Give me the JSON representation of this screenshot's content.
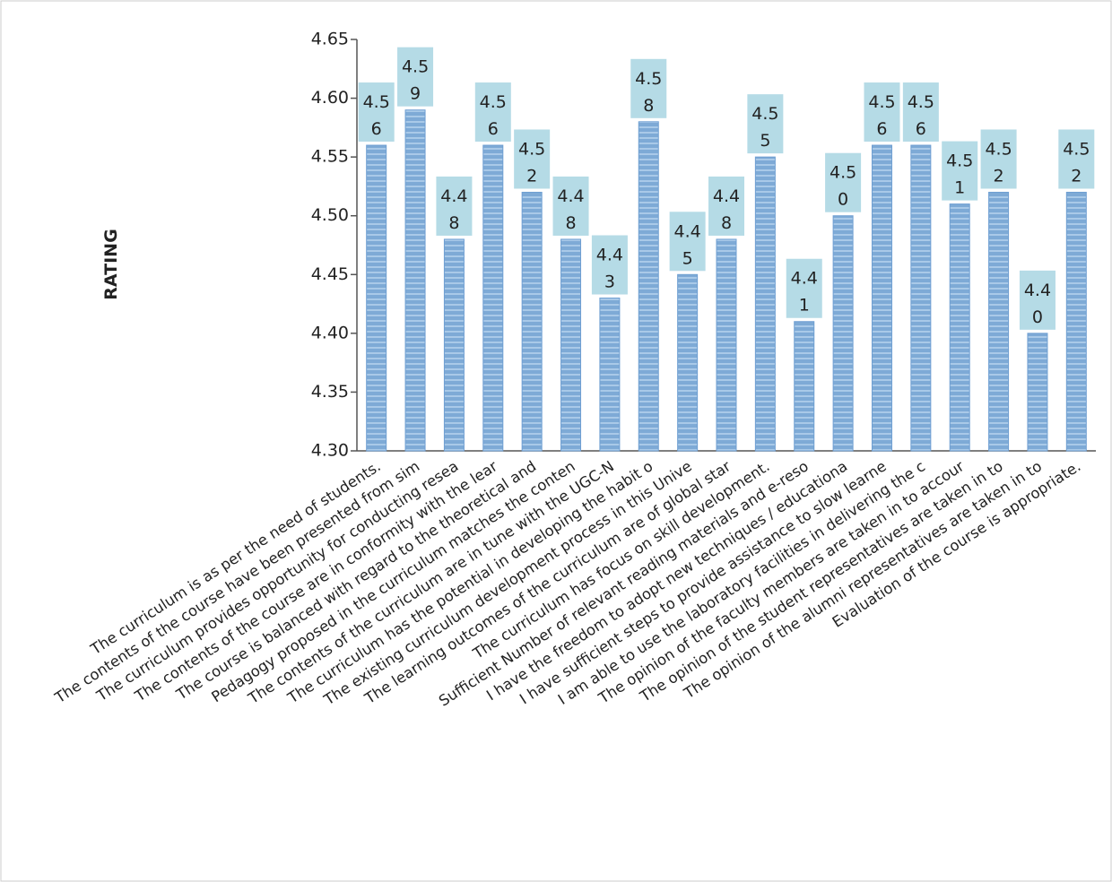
{
  "chart_data": {
    "type": "bar",
    "y_label": "RATING",
    "categories": [
      "The curriculum is as per the need of students.",
      "The contents of the course have been presented from sim",
      "The curriculum provides opportunity for conducting resea",
      "The contents of the course are in conformity with the lear",
      "The course is balanced with regard to the theoretical and",
      "Pedagogy proposed in the curriculum matches the conten",
      "The contents of the curriculum are in tune with the UGC-N",
      "The curriculum has the potential in developing the habit o",
      "The existing curriculum development process in this Unive",
      "The learning outcomes of the curriculum are of global star",
      "The curriculum has focus on skill development.",
      "Sufficient Number of relevant reading materials and e-reso",
      "I have the freedom to adopt new techniques / educationa",
      "I have sufficient steps to provide assistance to slow learne",
      "I am able to use the laboratory facilities in delivering the c",
      "The opinion of the faculty members are taken in to accour",
      "The opinion of the student representatives are taken in to",
      "The opinion of the alumni representatives are taken in to",
      "Evaluation of the course is appropriate."
    ],
    "values": [
      4.56,
      4.59,
      4.48,
      4.56,
      4.52,
      4.48,
      4.43,
      4.58,
      4.45,
      4.48,
      4.55,
      4.41,
      4.5,
      4.56,
      4.56,
      4.51,
      4.52,
      4.4,
      4.52
    ],
    "value_labels": [
      "4.56",
      "4.59",
      "4.48",
      "4.56",
      "4.52",
      "4.48",
      "4.43",
      "4.58",
      "4.45",
      "4.48",
      "4.55",
      "4.41",
      "4.50",
      "4.56",
      "4.56",
      "4.51",
      "4.52",
      "4.40",
      "4.52"
    ],
    "color": "#6f9fd2",
    "ylim": [
      4.3,
      4.65
    ],
    "yticks": [
      {
        "value": 4.3,
        "label": "4.30"
      },
      {
        "value": 4.35,
        "label": "4.35"
      },
      {
        "value": 4.4,
        "label": "4.40"
      },
      {
        "value": 4.45,
        "label": "4.45"
      },
      {
        "value": 4.5,
        "label": "4.50"
      },
      {
        "value": 4.55,
        "label": "4.55"
      },
      {
        "value": 4.6,
        "label": "4.60"
      },
      {
        "value": 4.65,
        "label": "4.65"
      }
    ]
  }
}
